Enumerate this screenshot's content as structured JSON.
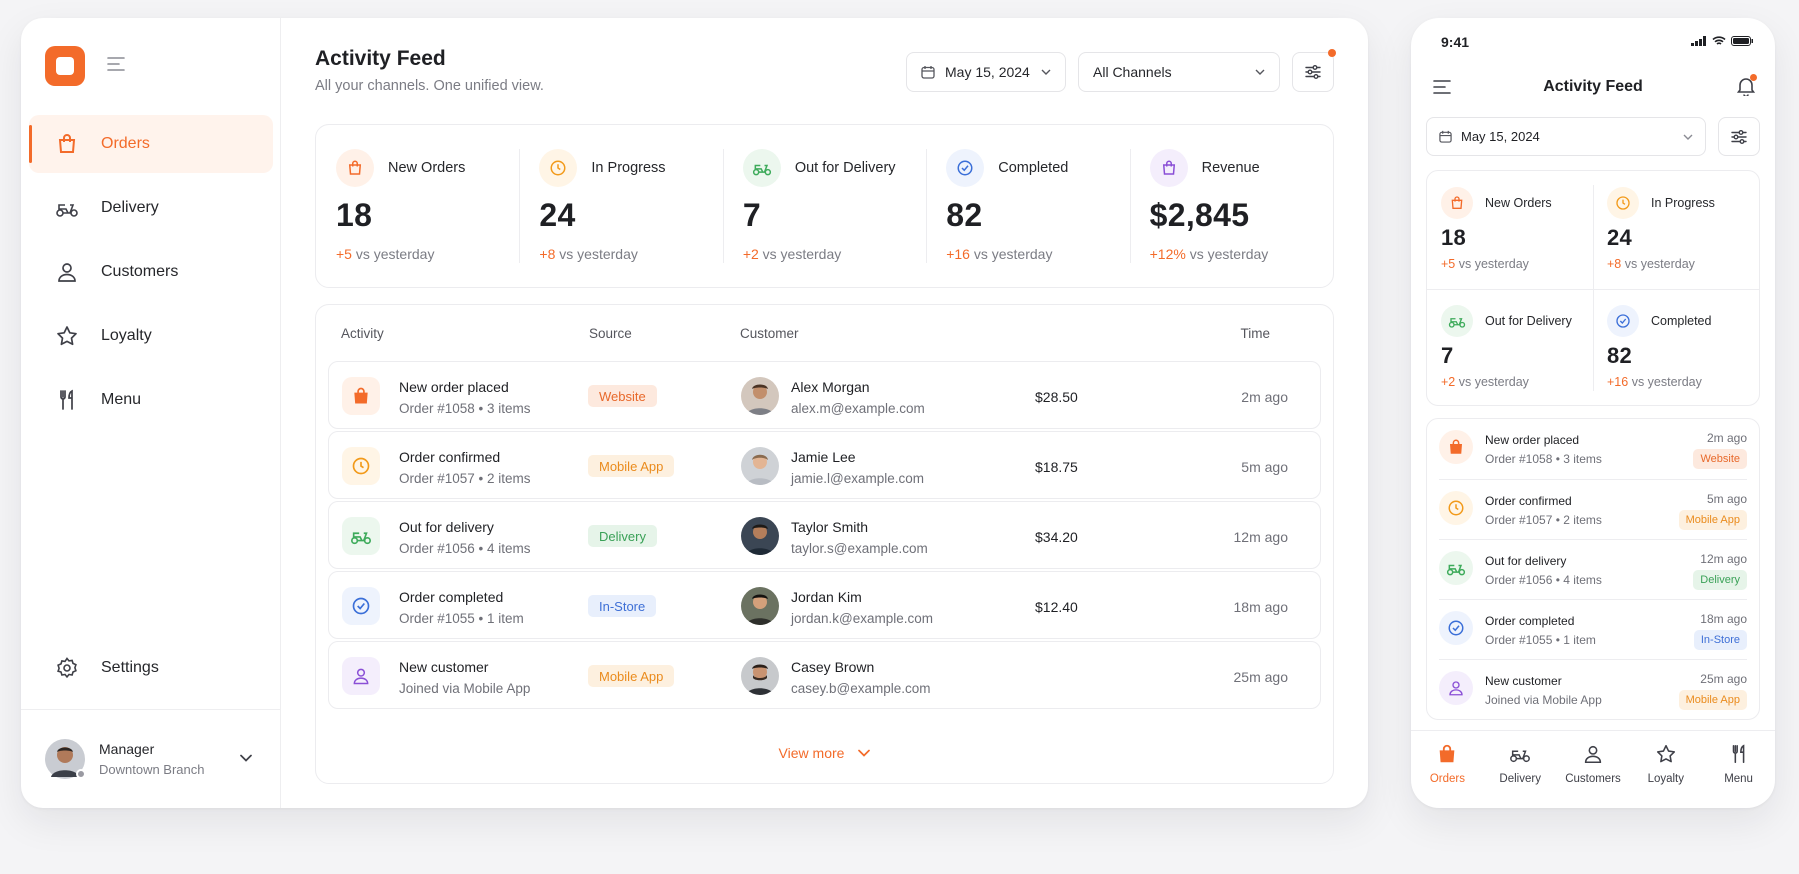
{
  "sidebar": {
    "nav": [
      {
        "label": "Orders",
        "icon": "shopping-bag-icon",
        "active": true
      },
      {
        "label": "Delivery",
        "icon": "scooter-icon"
      },
      {
        "label": "Customers",
        "icon": "user-icon"
      },
      {
        "label": "Loyalty",
        "icon": "star-icon"
      },
      {
        "label": "Menu",
        "icon": "fork-knife-icon"
      }
    ],
    "settings_label": "Settings",
    "user": {
      "name": "Manager",
      "branch": "Downtown Branch"
    }
  },
  "header": {
    "title": "Activity Feed",
    "subtitle": "All your channels. One unified view.",
    "date": "May 15, 2024",
    "channel": "All Channels"
  },
  "stats": [
    {
      "label": "New Orders",
      "value": "18",
      "delta": "+5",
      "suffix": "vs yesterday"
    },
    {
      "label": "In Progress",
      "value": "24",
      "delta": "+8",
      "suffix": "vs yesterday"
    },
    {
      "label": "Out for Delivery",
      "value": "7",
      "delta": "+2",
      "suffix": "vs yesterday"
    },
    {
      "label": "Completed",
      "value": "82",
      "delta": "+16",
      "suffix": "vs yesterday"
    },
    {
      "label": "Revenue",
      "value": "$2,845",
      "delta": "+12%",
      "suffix": "vs yesterday"
    }
  ],
  "feed": {
    "columns": {
      "activity": "Activity",
      "source": "Source",
      "customer": "Customer",
      "time": "Time"
    },
    "rows": [
      {
        "title": "New order placed",
        "sub": "Order #1058 • 3 items",
        "source": "Website",
        "name": "Alex Morgan",
        "email": "alex.m@example.com",
        "amount": "$28.50",
        "time": "2m ago"
      },
      {
        "title": "Order confirmed",
        "sub": "Order #1057 • 2 items",
        "source": "Mobile App",
        "name": "Jamie Lee",
        "email": "jamie.l@example.com",
        "amount": "$18.75",
        "time": "5m ago"
      },
      {
        "title": "Out for delivery",
        "sub": "Order #1056 • 4 items",
        "source": "Delivery",
        "name": "Taylor Smith",
        "email": "taylor.s@example.com",
        "amount": "$34.20",
        "time": "12m ago"
      },
      {
        "title": "Order completed",
        "sub": "Order #1055 • 1 item",
        "source": "In-Store",
        "name": "Jordan Kim",
        "email": "jordan.k@example.com",
        "amount": "$12.40",
        "time": "18m ago"
      },
      {
        "title": "New customer",
        "sub": "Joined via Mobile App",
        "source": "Mobile App",
        "name": "Casey Brown",
        "email": "casey.b@example.com",
        "amount": "",
        "time": "25m ago"
      }
    ],
    "view_more": "View more"
  },
  "mobile": {
    "clock": "9:41",
    "title": "Activity Feed",
    "date": "May 15, 2024",
    "tabs": [
      "Orders",
      "Delivery",
      "Customers",
      "Loyalty",
      "Menu"
    ]
  },
  "colors": {
    "accent": "#f36b2a",
    "green": "#3eab5b",
    "blue": "#3b6fd8",
    "purple": "#8a4fd6",
    "amber": "#f29a1a"
  }
}
